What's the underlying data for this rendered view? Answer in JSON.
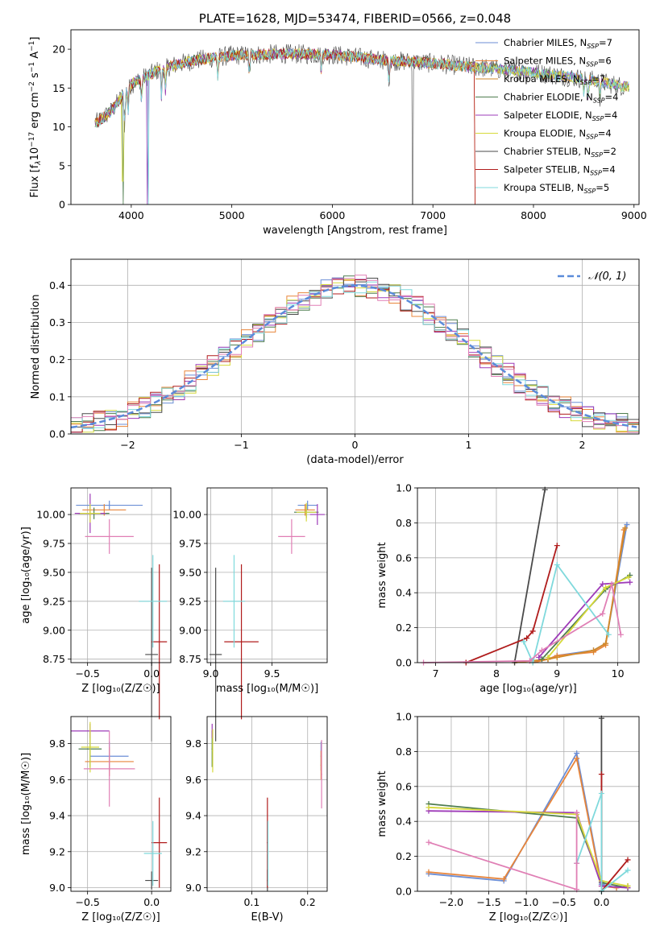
{
  "chart_data": [
    {
      "id": "spectrum",
      "type": "line",
      "title": "PLATE=1628, MJD=53474, FIBERID=0566, z=0.048",
      "xlabel": "wavelength [Angstrom, rest frame]",
      "ylabel_parts": {
        "pre": "Flux [f",
        "sub": "λ",
        "mid": "10",
        "sup1": "−17",
        "post": " erg cm",
        "sup2": "−2",
        "post2": " s",
        "sup3": "−1",
        "post3": " A",
        "sup4": "−1",
        "end": "]"
      },
      "xlim": [
        3400,
        9050
      ],
      "ylim": [
        0,
        22.5
      ],
      "xticks": [
        4000,
        5000,
        6000,
        7000,
        8000,
        9000
      ],
      "yticks": [
        0,
        5,
        10,
        15,
        20
      ],
      "legend_position": "upper-right",
      "series": [
        {
          "name": "Chabrier MILES, N",
          "sub": "SSP",
          "n": "=7",
          "color": "#6b8ed6"
        },
        {
          "name": "Salpeter MILES, N",
          "sub": "SSP",
          "n": "=6",
          "color": "#e8853a"
        },
        {
          "name": "Kroupa MILES, N",
          "sub": "SSP",
          "n": "=7",
          "color": "#d18a2a"
        },
        {
          "name": "Chabrier ELODIE, N",
          "sub": "SSP",
          "n": "=4",
          "color": "#4f7d4f"
        },
        {
          "name": "Salpeter ELODIE, N",
          "sub": "SSP",
          "n": "=4",
          "color": "#9e3bb8"
        },
        {
          "name": "Kroupa ELODIE, N",
          "sub": "SSP",
          "n": "=4",
          "color": "#d6d93a"
        },
        {
          "name": "Chabrier STELIB, N",
          "sub": "SSP",
          "n": "=2",
          "color": "#4a4a4a"
        },
        {
          "name": "Salpeter STELIB, N",
          "sub": "SSP",
          "n": "=4",
          "color": "#b01c1c"
        },
        {
          "name": "Kroupa STELIB, N",
          "sub": "SSP",
          "n": "=5",
          "color": "#7fd9dc"
        }
      ],
      "continuum": {
        "x": [
          3650,
          3800,
          4000,
          4300,
          4600,
          5000,
          5500,
          6000,
          6500,
          7000,
          7500,
          8000,
          8500,
          8900
        ],
        "y": [
          10.5,
          12,
          15.5,
          17.5,
          18.5,
          19.2,
          19.4,
          19.3,
          18.6,
          18.2,
          17.6,
          17.0,
          16.2,
          15.2
        ]
      }
    },
    {
      "id": "residuals",
      "type": "histogram",
      "xlabel": "(data-model)/error",
      "ylabel": "Normed distribution",
      "xlim": [
        -2.5,
        2.5
      ],
      "ylim": [
        0,
        0.47
      ],
      "xticks": [
        -2,
        -1,
        0,
        1,
        2
      ],
      "xtick_labels": [
        "−2",
        "−1",
        "0",
        "1",
        "2"
      ],
      "yticks": [
        0,
        0.1,
        0.2,
        0.3,
        0.4
      ],
      "ytick_labels": [
        "0.0",
        "0.1",
        "0.2",
        "0.3",
        "0.4"
      ],
      "legend": "𝒩(0, 1)",
      "legend_position": "upper-right",
      "gaussian_color": "#5b8bd9"
    },
    {
      "id": "age-vs-Z",
      "type": "scatter",
      "xlabel": "Z [log₁₀(Z/Z☉)]",
      "ylabel": "age  [log₁₀(age/yr)]",
      "xlim": [
        -0.63,
        0.15
      ],
      "ylim": [
        8.72,
        10.23
      ],
      "xticks": [
        -0.5,
        0.0
      ],
      "xtick_labels": [
        "−0.5",
        "0.0"
      ],
      "yticks": [
        8.75,
        9.0,
        9.25,
        9.5,
        9.75,
        10.0
      ],
      "ytick_labels": [
        "8.75",
        "9.00",
        "9.25",
        "9.50",
        "9.75",
        "10.00"
      ],
      "points": [
        {
          "x": -0.33,
          "y": 10.08,
          "xerr": 0.26,
          "yerr": 0.04,
          "color": "#6b8ed6"
        },
        {
          "x": -0.37,
          "y": 10.04,
          "xerr": 0.17,
          "yerr": 0.05,
          "color": "#e8853a"
        },
        {
          "x": -0.45,
          "y": 10.01,
          "xerr": 0.12,
          "yerr": 0.05,
          "color": "#4f7d4f"
        },
        {
          "x": -0.48,
          "y": 10.01,
          "xerr": 0.12,
          "yerr": 0.17,
          "color": "#9e3bb8"
        },
        {
          "x": -0.48,
          "y": 10.01,
          "xerr": 0.08,
          "yerr": 0.08,
          "color": "#d6d93a"
        },
        {
          "x": -0.33,
          "y": 9.81,
          "xerr": 0.19,
          "yerr": 0.15,
          "color": "#e07fb5"
        },
        {
          "x": 0.0,
          "y": 8.79,
          "xerr": 0.05,
          "yerr": 0.75,
          "color": "#4a4a4a"
        },
        {
          "x": 0.06,
          "y": 8.9,
          "xerr": 0.06,
          "yerr": 0.67,
          "color": "#b01c1c"
        },
        {
          "x": 0.01,
          "y": 9.25,
          "xerr": 0.11,
          "yerr": 0.4,
          "color": "#7fd9dc"
        }
      ]
    },
    {
      "id": "age-vs-mass",
      "type": "scatter",
      "xlabel": "mass [log₁₀(M/M☉)]",
      "xlim": [
        8.97,
        9.95
      ],
      "ylim": [
        8.72,
        10.23
      ],
      "xticks": [
        9.0,
        9.5
      ],
      "xtick_labels": [
        "9.0",
        "9.5"
      ],
      "yticks": [
        8.75,
        9.0,
        9.25,
        9.5,
        9.75,
        10.0
      ],
      "ytick_labels": [
        "8.75",
        "9.00",
        "9.25",
        "9.50",
        "9.75",
        "10.00"
      ],
      "points": [
        {
          "x": 9.79,
          "y": 10.08,
          "xerr": 0.08,
          "yerr": 0.04,
          "color": "#6b8ed6"
        },
        {
          "x": 9.77,
          "y": 10.04,
          "xerr": 0.08,
          "yerr": 0.05,
          "color": "#e8853a"
        },
        {
          "x": 9.78,
          "y": 10.02,
          "xerr": 0.1,
          "yerr": 0.05,
          "color": "#4f7d4f"
        },
        {
          "x": 9.87,
          "y": 10.0,
          "xerr": 0.06,
          "yerr": 0.09,
          "color": "#9e3bb8"
        },
        {
          "x": 9.78,
          "y": 10.02,
          "xerr": 0.08,
          "yerr": 0.08,
          "color": "#d6d93a"
        },
        {
          "x": 9.66,
          "y": 9.81,
          "xerr": 0.11,
          "yerr": 0.15,
          "color": "#e07fb5"
        },
        {
          "x": 9.04,
          "y": 8.79,
          "xerr": 0.05,
          "yerr": 0.75,
          "color": "#4a4a4a"
        },
        {
          "x": 9.25,
          "y": 8.9,
          "xerr": 0.14,
          "yerr": 0.67,
          "color": "#b01c1c"
        },
        {
          "x": 9.19,
          "y": 9.25,
          "xerr": 0.09,
          "yerr": 0.4,
          "color": "#7fd9dc"
        }
      ]
    },
    {
      "id": "massweight-vs-age",
      "type": "line",
      "xlabel": "age  [log₁₀(age/yr)]",
      "ylabel": "mass weight",
      "xlim": [
        6.7,
        10.35
      ],
      "ylim": [
        0,
        1.0
      ],
      "xticks": [
        7,
        8,
        9,
        10
      ],
      "xtick_labels": [
        "7",
        "8",
        "9",
        "10"
      ],
      "yticks": [
        0,
        0.2,
        0.4,
        0.6,
        0.8,
        1.0
      ],
      "ytick_labels": [
        "0.0",
        "0.2",
        "0.4",
        "0.6",
        "0.8",
        "1.0"
      ],
      "series": [
        {
          "color": "#6b8ed6",
          "x": [
            8.6,
            8.85,
            9.0,
            9.6,
            9.8,
            10.15
          ],
          "y": [
            0.01,
            0.02,
            0.04,
            0.07,
            0.11,
            0.79
          ]
        },
        {
          "color": "#e8853a",
          "x": [
            8.6,
            8.85,
            9.0,
            9.6,
            9.8,
            10.1
          ],
          "y": [
            0.0,
            0.02,
            0.04,
            0.06,
            0.1,
            0.76
          ]
        },
        {
          "color": "#d18a2a",
          "x": [
            8.3,
            8.85,
            9.0,
            9.6,
            9.8,
            10.12
          ],
          "y": [
            0.0,
            0.02,
            0.03,
            0.07,
            0.11,
            0.77
          ]
        },
        {
          "color": "#4f7d4f",
          "x": [
            8.75,
            9.8,
            10.2
          ],
          "y": [
            0.02,
            0.42,
            0.5
          ]
        },
        {
          "color": "#9e3bb8",
          "x": [
            8.7,
            9.75,
            10.2
          ],
          "y": [
            0.03,
            0.45,
            0.46
          ]
        },
        {
          "color": "#d6d93a",
          "x": [
            8.85,
            9.8,
            10.18
          ],
          "y": [
            0.03,
            0.43,
            0.49
          ]
        },
        {
          "color": "#4a4a4a",
          "x": [
            8.3,
            8.8
          ],
          "y": [
            0.0,
            0.99
          ]
        },
        {
          "color": "#b01c1c",
          "x": [
            7.5,
            8.5,
            8.6,
            9.0
          ],
          "y": [
            0.0,
            0.14,
            0.18,
            0.67
          ]
        },
        {
          "color": "#7fd9dc",
          "x": [
            8.45,
            8.6,
            9.0,
            9.85
          ],
          "y": [
            0.12,
            0.0,
            0.56,
            0.16
          ]
        },
        {
          "color": "#e07fb5",
          "x": [
            6.8,
            8.55,
            8.75,
            9.75,
            9.9,
            10.05
          ],
          "y": [
            0.0,
            0.01,
            0.07,
            0.28,
            0.45,
            0.16
          ]
        }
      ]
    },
    {
      "id": "mass-vs-Z",
      "type": "scatter",
      "xlabel": "Z [log₁₀(Z/Z☉)]",
      "ylabel": "mass [log₁₀(M/M☉)]",
      "xlim": [
        -0.63,
        0.15
      ],
      "ylim": [
        8.98,
        9.95
      ],
      "xticks": [
        -0.5,
        0.0
      ],
      "xtick_labels": [
        "−0.5",
        "0.0"
      ],
      "yticks": [
        9.0,
        9.2,
        9.4,
        9.6,
        9.8
      ],
      "ytick_labels": [
        "9.0",
        "9.2",
        "9.4",
        "9.6",
        "9.8"
      ],
      "points": [
        {
          "x": -0.33,
          "y": 9.73,
          "xerr": 0.15,
          "yerr": 0.08,
          "color": "#6b8ed6"
        },
        {
          "x": -0.33,
          "y": 9.7,
          "xerr": 0.19,
          "yerr": 0.08,
          "color": "#e8853a"
        },
        {
          "x": -0.48,
          "y": 9.77,
          "xerr": 0.09,
          "yerr": 0.1,
          "color": "#4f7d4f"
        },
        {
          "x": -0.48,
          "y": 9.87,
          "xerr": 0.15,
          "yerr": 0.04,
          "color": "#9e3bb8"
        },
        {
          "x": -0.48,
          "y": 9.78,
          "xerr": 0.07,
          "yerr": 0.14,
          "color": "#d6d93a"
        },
        {
          "x": -0.33,
          "y": 9.66,
          "xerr": 0.2,
          "yerr": 0.21,
          "color": "#e07fb5"
        },
        {
          "x": 0.0,
          "y": 9.04,
          "xerr": 0.05,
          "yerr": 0.05,
          "color": "#4a4a4a"
        },
        {
          "x": 0.06,
          "y": 9.25,
          "xerr": 0.06,
          "yerr": 0.25,
          "color": "#b01c1c"
        },
        {
          "x": 0.01,
          "y": 9.19,
          "xerr": 0.07,
          "yerr": 0.18,
          "color": "#7fd9dc"
        }
      ]
    },
    {
      "id": "mass-vs-EBV",
      "type": "scatter",
      "xlabel": "E(B-V)",
      "xlim": [
        0.02,
        0.235
      ],
      "ylim": [
        8.98,
        9.95
      ],
      "xticks": [
        0.1,
        0.2
      ],
      "xtick_labels": [
        "0.1",
        "0.2"
      ],
      "yticks": [
        9.0,
        9.2,
        9.4,
        9.6,
        9.8
      ],
      "ytick_labels": [
        "9.0",
        "9.2",
        "9.4",
        "9.6",
        "9.8"
      ],
      "points": [
        {
          "x": 0.224,
          "y": 9.73,
          "xerr": 0.001,
          "yerr": 0.08,
          "color": "#6b8ed6"
        },
        {
          "x": 0.224,
          "y": 9.68,
          "xerr": 0.001,
          "yerr": 0.08,
          "color": "#e8853a"
        },
        {
          "x": 0.029,
          "y": 9.77,
          "xerr": 0.001,
          "yerr": 0.1,
          "color": "#4f7d4f"
        },
        {
          "x": 0.029,
          "y": 9.87,
          "xerr": 0.001,
          "yerr": 0.04,
          "color": "#9e3bb8"
        },
        {
          "x": 0.03,
          "y": 9.76,
          "xerr": 0.001,
          "yerr": 0.12,
          "color": "#d6d93a"
        },
        {
          "x": 0.225,
          "y": 9.63,
          "xerr": 0.001,
          "yerr": 0.19,
          "color": "#e07fb5"
        },
        {
          "x": 0.128,
          "y": 9.04,
          "xerr": 0.001,
          "yerr": 0.06,
          "color": "#4a4a4a"
        },
        {
          "x": 0.128,
          "y": 9.25,
          "xerr": 0.001,
          "yerr": 0.25,
          "color": "#b01c1c"
        },
        {
          "x": 0.129,
          "y": 9.19,
          "xerr": 0.001,
          "yerr": 0.18,
          "color": "#7fd9dc"
        }
      ]
    },
    {
      "id": "massweight-vs-Z",
      "type": "line",
      "xlabel": "Z [log₁₀(Z/Z☉)]",
      "ylabel": "mass weight",
      "xlim": [
        -2.45,
        0.5
      ],
      "ylim": [
        0,
        1.0
      ],
      "xticks": [
        -2.0,
        -1.5,
        -1.0,
        -0.5,
        0.0
      ],
      "xtick_labels": [
        "−2.0",
        "−1.5",
        "−1.0",
        "−0.5",
        "0.0"
      ],
      "yticks": [
        0,
        0.2,
        0.4,
        0.6,
        0.8,
        1.0
      ],
      "ytick_labels": [
        "0.0",
        "0.2",
        "0.4",
        "0.6",
        "0.8",
        "1.0"
      ],
      "series": [
        {
          "color": "#6b8ed6",
          "x": [
            -2.3,
            -1.3,
            -0.33,
            0.0,
            0.2,
            0.35
          ],
          "y": [
            0.1,
            0.06,
            0.79,
            0.04,
            0.02,
            0.03
          ]
        },
        {
          "color": "#e8853a",
          "x": [
            -2.3,
            -1.3,
            -0.33,
            0.0,
            0.2,
            0.35
          ],
          "y": [
            0.11,
            0.07,
            0.76,
            0.03,
            0.02,
            0.03
          ]
        },
        {
          "color": "#4f7d4f",
          "x": [
            -2.3,
            -0.33,
            0.0,
            0.35
          ],
          "y": [
            0.5,
            0.42,
            0.05,
            0.02
          ]
        },
        {
          "color": "#9e3bb8",
          "x": [
            -2.3,
            -0.33,
            0.0,
            0.35
          ],
          "y": [
            0.46,
            0.45,
            0.03,
            0.02
          ]
        },
        {
          "color": "#d6d93a",
          "x": [
            -2.3,
            -0.33,
            0.0,
            0.35
          ],
          "y": [
            0.48,
            0.44,
            0.06,
            0.03
          ]
        },
        {
          "color": "#4a4a4a",
          "x": [
            0.0,
            0.0
          ],
          "y": [
            0.0,
            0.99
          ]
        },
        {
          "color": "#b01c1c",
          "x": [
            0.0,
            0.0,
            0.35
          ],
          "y": [
            0.67,
            0.0,
            0.18
          ]
        },
        {
          "color": "#7fd9dc",
          "x": [
            -0.33,
            0.0,
            0.0,
            0.35
          ],
          "y": [
            0.16,
            0.56,
            0.0,
            0.12
          ]
        },
        {
          "color": "#e07fb5",
          "x": [
            -2.3,
            -0.33,
            -0.33,
            -0.33
          ],
          "y": [
            0.28,
            0.01,
            0.45,
            0.16
          ]
        }
      ]
    }
  ]
}
